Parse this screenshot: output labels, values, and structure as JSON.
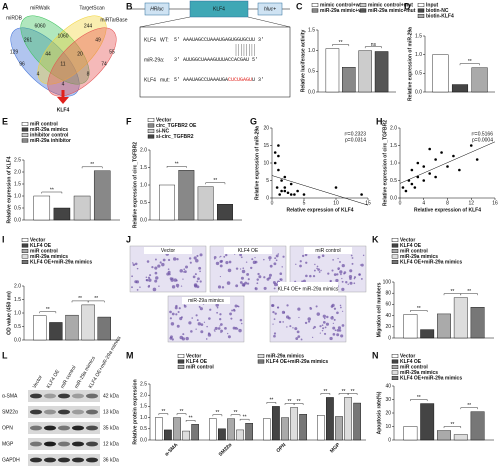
{
  "venn": {
    "panel": "A",
    "sets": [
      "miRDB",
      "miRWalk",
      "TargetScan",
      "miRTarBase"
    ],
    "regions": [
      "129",
      "6060",
      "244",
      "55",
      "261",
      "1060",
      "49",
      "96",
      "44",
      "20",
      "74",
      "4",
      "11",
      "8",
      "4"
    ],
    "result": "KLF4"
  },
  "diagram": {
    "panel": "B",
    "elements": [
      "HRluc",
      "KLF4",
      "hluc+"
    ],
    "rows": [
      {
        "gene": "KLF4",
        "tag": "WT:",
        "seq": [
          "5' AAAUAGCCUAAAUGAGUGGUGCUU 3'"
        ]
      },
      {
        "gene": "miR-29a:",
        "seq": [
          "3' AUUGGCUAAAGUUUACCACGAU 5'"
        ]
      },
      {
        "gene": "KLF4",
        "tag": "mut:",
        "seq": [
          "5' AAAUAGCCUAAAUGA",
          "CUCUGAGU",
          "U 3'"
        ]
      }
    ],
    "mut_color": "#e0201b"
  },
  "images": {
    "panel": "J",
    "labels": [
      "Vector",
      "KLF4 OE",
      "miR control",
      "miR-29a mimics",
      "KLF4 OE+ miR-29a mimics"
    ]
  },
  "blot": {
    "panel": "L",
    "lanes": [
      "Vector",
      "KLF4 OE",
      "miR control",
      "miR-29a mimics",
      "KLF4 OE+miR-29a mimics"
    ],
    "proteins": [
      "α-SMA",
      "SM22α",
      "OPN",
      "MGP",
      "GAPDH"
    ],
    "sizes": [
      "42 kDa",
      "13 kDa",
      "35 kDa",
      "12 kDa",
      "36 kDa"
    ]
  },
  "chart_data": [
    {
      "type": "bar",
      "panel": "C",
      "ylabel": "Relative luciferase activity",
      "categories": [
        null
      ],
      "series": [
        {
          "name": "mimic control+wt",
          "color": "#ffffff",
          "values": [
            1.05
          ]
        },
        {
          "name": "miR-29a mimic+wt",
          "color": "#888888",
          "values": [
            0.6
          ]
        },
        {
          "name": "mimic control+mut",
          "color": "#cccccc",
          "values": [
            1.0
          ]
        },
        {
          "name": "miR-29a mimic+mut",
          "color": "#555555",
          "values": [
            0.98
          ]
        }
      ],
      "ylim": [
        0,
        1.5
      ],
      "yticks": [
        {
          "value": 0,
          "label": "0.0"
        },
        {
          "value": 0.5,
          "label": "0.5"
        },
        {
          "value": 1,
          "label": "1.0"
        },
        {
          "value": 1.5,
          "label": "1.5"
        }
      ],
      "annotations": [
        "**",
        "ns"
      ]
    },
    {
      "type": "bar",
      "panel": "D",
      "ylabel": "Relative expression of miR-29a",
      "categories": [
        null
      ],
      "series": [
        {
          "name": "Input",
          "color": "#ffffff",
          "values": [
            1.0
          ]
        },
        {
          "name": "biotin-NC",
          "color": "#444444",
          "values": [
            0.2
          ]
        },
        {
          "name": "biotin-KLF4",
          "color": "#aaaaaa",
          "values": [
            0.65
          ]
        }
      ],
      "ylim": [
        0,
        1.5
      ],
      "yticks": [
        {
          "value": 0,
          "label": "0.0"
        },
        {
          "value": 0.5,
          "label": "0.5"
        },
        {
          "value": 1,
          "label": "1.0"
        },
        {
          "value": 1.5,
          "label": "1.5"
        }
      ],
      "annotations": [
        "**"
      ]
    },
    {
      "type": "bar",
      "panel": "E",
      "ylabel": "Relative expression of KLF4",
      "categories": [
        null
      ],
      "series": [
        {
          "name": "miR control",
          "color": "#ffffff",
          "values": [
            1.0
          ]
        },
        {
          "name": "miR-29a mimics",
          "color": "#444444",
          "values": [
            0.5
          ]
        },
        {
          "name": "inhibitor control",
          "color": "#cccccc",
          "values": [
            1.0
          ]
        },
        {
          "name": "miR-29a inhibitor",
          "color": "#888888",
          "values": [
            2.05
          ]
        }
      ],
      "ylim": [
        0,
        2.5
      ],
      "yticks": [
        {
          "value": 0,
          "label": "0.0"
        },
        {
          "value": 0.5,
          "label": "0.5"
        },
        {
          "value": 1,
          "label": "1.0"
        },
        {
          "value": 1.5,
          "label": "1.5"
        },
        {
          "value": 2,
          "label": "2.0"
        },
        {
          "value": 2.5,
          "label": "2.5"
        }
      ],
      "annotations": [
        "**",
        "**"
      ]
    },
    {
      "type": "bar",
      "panel": "F",
      "ylabel": "Relative expression of circ_TGFBR2",
      "categories": [
        null
      ],
      "series": [
        {
          "name": "Vector",
          "color": "#ffffff",
          "values": [
            1.0
          ]
        },
        {
          "name": "circ_TGFBR2 OE",
          "color": "#888888",
          "values": [
            1.42
          ]
        },
        {
          "name": "si-NC",
          "color": "#cccccc",
          "values": [
            0.95
          ]
        },
        {
          "name": "si-circ_TGFBR2",
          "color": "#444444",
          "values": [
            0.45
          ]
        }
      ],
      "ylim": [
        0,
        2.0
      ],
      "yticks": [
        {
          "value": 0,
          "label": "0.0"
        },
        {
          "value": 0.5,
          "label": "0.5"
        },
        {
          "value": 1,
          "label": "1.0"
        },
        {
          "value": 1.5,
          "label": "1.5"
        },
        {
          "value": 2,
          "label": "2.0"
        }
      ],
      "annotations": [
        "**",
        "**"
      ]
    },
    {
      "type": "scatter",
      "panel": "G",
      "xlabel": "Relative expression of KLF4",
      "ylabel": "Relative expression of miR-29a",
      "color": "#000000",
      "x": [
        0.5,
        1,
        1,
        1.5,
        2,
        2,
        2.5,
        3,
        1,
        0.5,
        3,
        4,
        5,
        10,
        14,
        1.5,
        2,
        0.8,
        3.5,
        1.2
      ],
      "y": [
        13,
        12,
        8,
        5,
        3,
        2,
        1.5,
        1,
        15,
        10,
        4,
        2,
        1,
        3,
        1,
        2,
        6,
        3,
        1,
        1
      ],
      "xlim": [
        0,
        15
      ],
      "xticks": [
        0,
        5,
        10,
        15
      ],
      "ylim": [
        0,
        20
      ],
      "yticks": [
        0,
        5,
        10,
        15,
        20
      ],
      "annotations": [
        "r²=0.2323",
        "p=0.0314"
      ]
    },
    {
      "type": "scatter",
      "panel": "H",
      "xlabel": "Relative expression of KLF4",
      "ylabel": "Relative expression of circ_TGFBR2",
      "color": "#000000",
      "x": [
        0.5,
        1,
        1.5,
        2,
        2,
        3,
        3,
        4,
        4,
        5,
        6,
        6,
        7,
        8,
        9,
        10,
        12,
        13,
        2.5,
        5
      ],
      "y": [
        0.3,
        0.2,
        0.5,
        0.4,
        0.8,
        0.6,
        1.0,
        0.5,
        0.9,
        0.7,
        1.1,
        0.6,
        1.3,
        0.9,
        1.2,
        0.8,
        1.5,
        1.1,
        0.3,
        1.4
      ],
      "xlim": [
        0,
        16
      ],
      "xticks": [
        0,
        4,
        8,
        12,
        16
      ],
      "ylim": [
        0,
        2.0
      ],
      "yticks": [
        {
          "value": 0,
          "label": "0.0"
        },
        {
          "value": 0.5,
          "label": "0.5"
        },
        {
          "value": 1,
          "label": "1.0"
        },
        {
          "value": 1.5,
          "label": "1.5"
        },
        {
          "value": 2,
          "label": "2.0"
        }
      ],
      "annotations": [
        "r²=0.5166",
        "p=0.0004"
      ]
    },
    {
      "type": "bar",
      "panel": "I",
      "ylabel": "OD value (450 nm)",
      "categories": [
        null
      ],
      "series": [
        {
          "name": "Vector",
          "color": "#ffffff",
          "values": [
            0.9
          ]
        },
        {
          "name": "KLF4 OE",
          "color": "#444444",
          "values": [
            0.65
          ]
        },
        {
          "name": "miR control",
          "color": "#aaaaaa",
          "values": [
            0.92
          ]
        },
        {
          "name": "miR-29a mimics",
          "color": "#dddddd",
          "values": [
            1.3
          ]
        },
        {
          "name": "KLF4 OE+miR-29a mimics",
          "color": "#777777",
          "values": [
            0.85
          ]
        }
      ],
      "ylim": [
        0,
        2.0
      ],
      "yticks": [
        {
          "value": 0,
          "label": "0.0"
        },
        {
          "value": 0.5,
          "label": "0.5"
        },
        {
          "value": 1,
          "label": "1.0"
        },
        {
          "value": 1.5,
          "label": "1.5"
        },
        {
          "value": 2,
          "label": "2.0"
        }
      ],
      "annotations": [
        "**",
        "**",
        "**"
      ]
    },
    {
      "type": "bar",
      "panel": "K",
      "ylabel": "Migration cell numbers",
      "categories": [
        null
      ],
      "series": [
        {
          "name": "Vector",
          "color": "#ffffff",
          "values": [
            42
          ]
        },
        {
          "name": "KLF4 OE",
          "color": "#444444",
          "values": [
            15
          ]
        },
        {
          "name": "miR control",
          "color": "#aaaaaa",
          "values": [
            43
          ]
        },
        {
          "name": "miR-29a mimics",
          "color": "#dddddd",
          "values": [
            72
          ]
        },
        {
          "name": "KLF4 OE+miR-29a mimics",
          "color": "#777777",
          "values": [
            55
          ]
        }
      ],
      "ylim": [
        0,
        100
      ],
      "yticks": [
        0,
        20,
        40,
        60,
        80,
        100
      ],
      "annotations": [
        "**",
        "**",
        "**"
      ]
    },
    {
      "type": "bar",
      "panel": "M",
      "ylabel": "Relative protein expression",
      "categories": [
        "α-SMA",
        "SM22α",
        "OPN",
        "MGP"
      ],
      "series": [
        {
          "name": "Vector",
          "color": "#ffffff",
          "values": [
            1.0,
            0.95,
            0.95,
            1.1
          ]
        },
        {
          "name": "KLF4 OE",
          "color": "#444444",
          "values": [
            0.45,
            0.5,
            1.5,
            1.9
          ]
        },
        {
          "name": "miR control",
          "color": "#aaaaaa",
          "values": [
            1.0,
            0.95,
            1.0,
            1.05
          ]
        },
        {
          "name": "miR-29a mimics",
          "color": "#dddddd",
          "values": [
            0.4,
            0.45,
            1.45,
            1.9
          ]
        },
        {
          "name": "KLF4 OE+miR-29a mimics",
          "color": "#777777",
          "values": [
            0.7,
            0.75,
            1.15,
            1.65
          ]
        }
      ],
      "ylim": [
        0,
        2.5
      ],
      "yticks": [
        {
          "value": 0,
          "label": "0.0"
        },
        {
          "value": 0.5,
          "label": "0.5"
        },
        {
          "value": 1,
          "label": "1.0"
        },
        {
          "value": 1.5,
          "label": "1.5"
        },
        {
          "value": 2,
          "label": "2.0"
        },
        {
          "value": 2.5,
          "label": "2.5"
        }
      ],
      "annotations": [
        "**",
        "**",
        "**",
        "**",
        "**",
        "**",
        "**",
        "**",
        "**",
        "**",
        "**",
        "**"
      ]
    },
    {
      "type": "bar",
      "panel": "N",
      "ylabel": "Apoptosis rate(%)",
      "categories": [
        null
      ],
      "series": [
        {
          "name": "Vector",
          "color": "#ffffff",
          "values": [
            10
          ]
        },
        {
          "name": "KLF4 OE",
          "color": "#444444",
          "values": [
            27
          ]
        },
        {
          "name": "miR control",
          "color": "#aaaaaa",
          "values": [
            7
          ]
        },
        {
          "name": "miR-29a mimics",
          "color": "#dddddd",
          "values": [
            4
          ]
        },
        {
          "name": "KLF4 OE+miR-29a mimics",
          "color": "#777777",
          "values": [
            21
          ]
        }
      ],
      "ylim": [
        0,
        40
      ],
      "yticks": [
        0,
        10,
        20,
        30,
        40
      ],
      "annotations": [
        "**",
        "**",
        "**"
      ]
    }
  ]
}
